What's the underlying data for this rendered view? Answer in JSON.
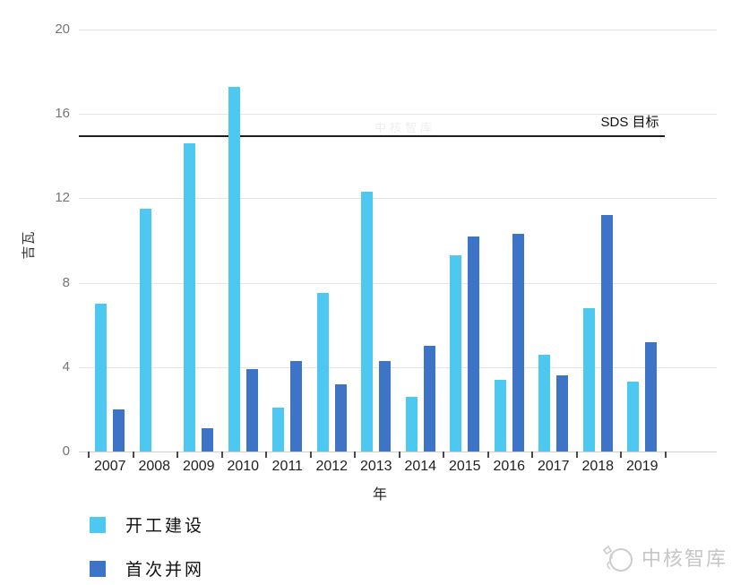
{
  "chart_data": {
    "type": "bar",
    "title": "",
    "categories": [
      "2007",
      "2008",
      "2009",
      "2010",
      "2011",
      "2012",
      "2013",
      "2014",
      "2015",
      "2016",
      "2017",
      "2018",
      "2019"
    ],
    "series": [
      {
        "name": "开工建设",
        "color": "#4DC8F0",
        "values": [
          7.0,
          11.5,
          14.6,
          17.3,
          2.1,
          7.5,
          12.3,
          2.6,
          9.3,
          3.4,
          4.6,
          6.8,
          3.3
        ]
      },
      {
        "name": "首次并网",
        "color": "#3D74C8",
        "values": [
          2.0,
          0,
          1.1,
          3.9,
          4.3,
          3.2,
          4.3,
          5.0,
          10.2,
          10.3,
          3.6,
          11.2,
          5.2
        ]
      }
    ],
    "xlabel": "年",
    "ylabel": "吉瓦",
    "ylim": [
      0,
      20
    ],
    "yticks": [
      0,
      4,
      8,
      12,
      16,
      20
    ],
    "grid": true,
    "legend_position": "bottom-left",
    "reference_line": {
      "value": 15,
      "label": "SDS 目标"
    }
  },
  "watermark": {
    "text": "中核智库"
  },
  "faint_watermark": {
    "text": "中核智库"
  },
  "colors": {
    "bar_light": "#4DC8F0",
    "bar_dark": "#3D74C8",
    "gridline": "#e5e5e5",
    "reference_line": "#1c1c1c",
    "tick_text": "#757575",
    "watermark_gray": "#c6c6c6"
  }
}
